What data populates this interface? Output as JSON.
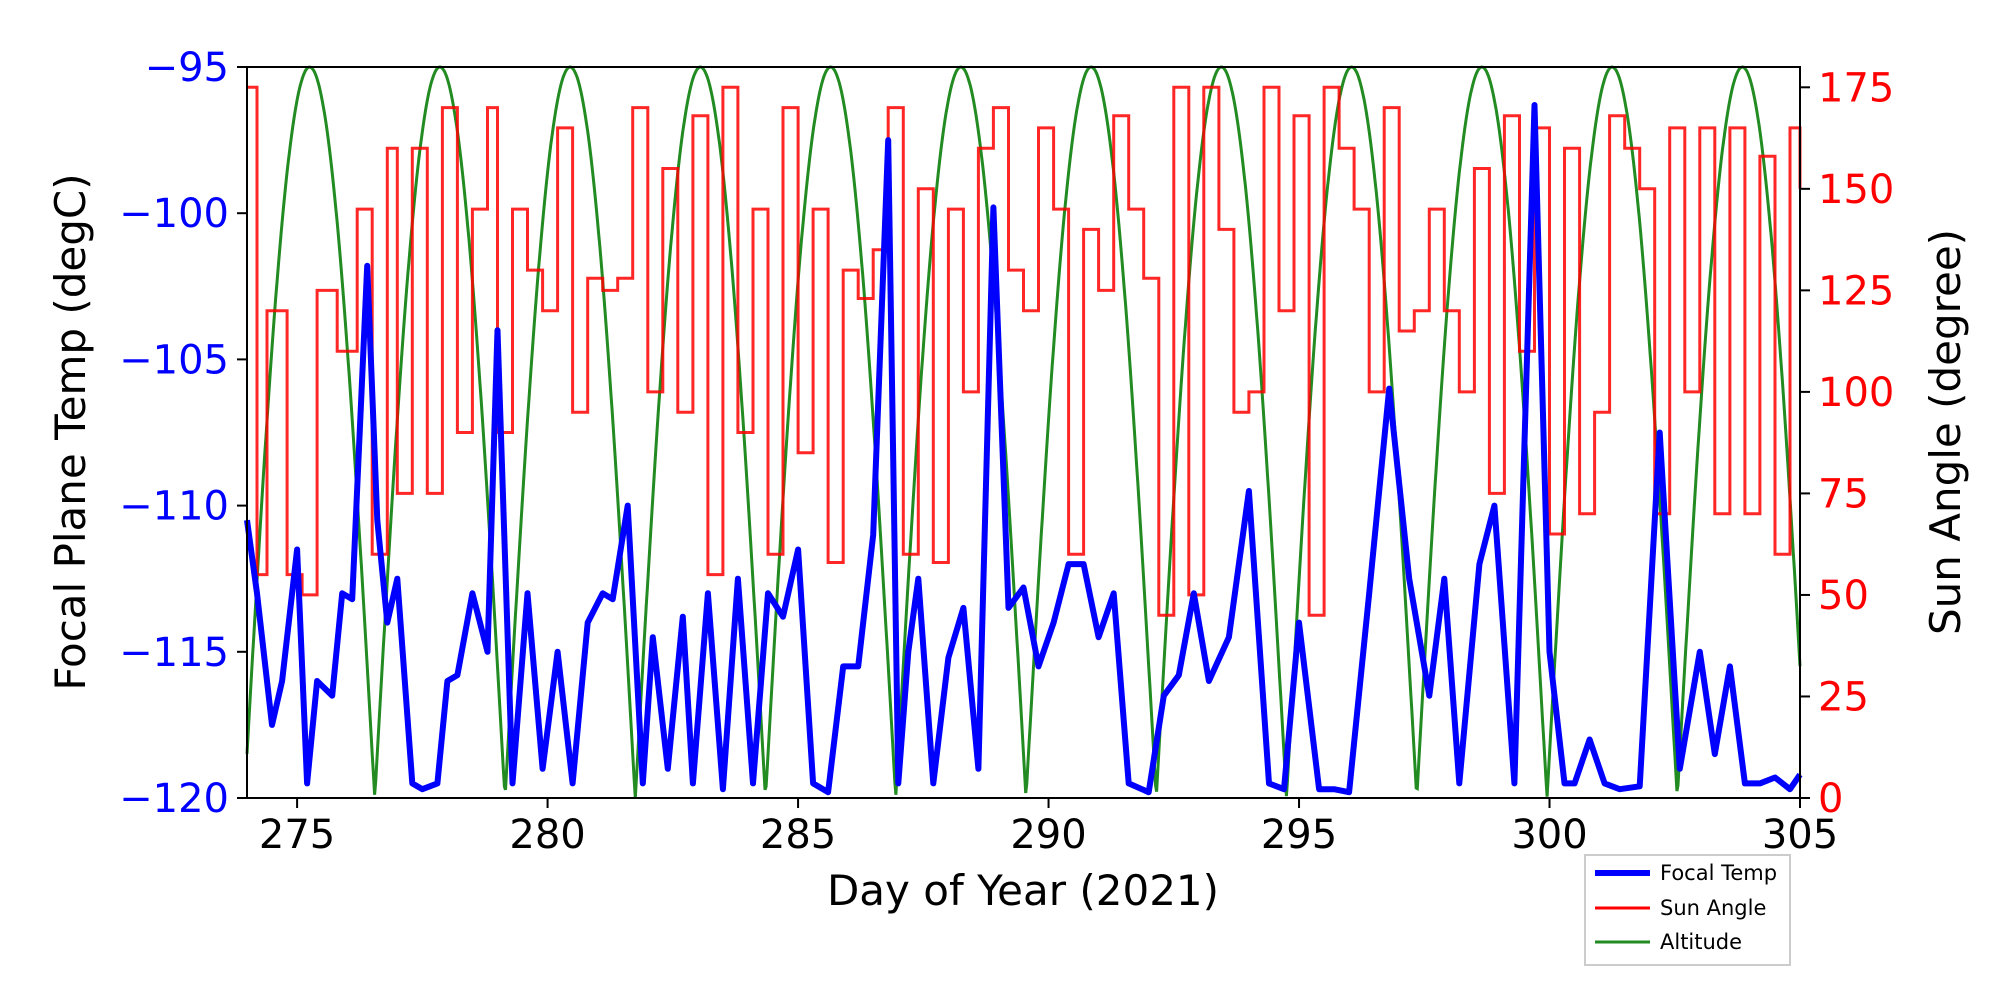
{
  "chart_data": {
    "type": "line",
    "title": "",
    "xlabel": "Day of Year (2021)",
    "ylabel_left": "Focal Plane Temp (degC)",
    "ylabel_right": "Sun Angle (degree)",
    "xlim": [
      274,
      305
    ],
    "ylim_left": [
      -120,
      -95
    ],
    "ylim_right": [
      0,
      180
    ],
    "x_ticks": [
      275,
      280,
      285,
      290,
      295,
      300,
      305
    ],
    "y_left_ticks": [
      -95,
      -100,
      -105,
      -110,
      -115,
      -120
    ],
    "y_left_tick_labels": [
      "−95",
      "−100",
      "−105",
      "−110",
      "−115",
      "−120"
    ],
    "y_right_ticks": [
      0,
      25,
      50,
      75,
      100,
      125,
      150,
      175
    ],
    "grid": false,
    "legend_position": "lower-right",
    "colors": {
      "focal": "#0000ff",
      "sun": "#ff0000",
      "altitude": "#228b22",
      "left_axis": "#0000ff",
      "right_axis": "#ff0000"
    },
    "series": [
      {
        "name": "Focal Temp",
        "axis": "left",
        "x": [
          274.0,
          274.2,
          274.5,
          274.7,
          275.0,
          275.2,
          275.4,
          275.7,
          275.9,
          276.1,
          276.4,
          276.6,
          276.8,
          277.0,
          277.3,
          277.5,
          277.8,
          278.0,
          278.2,
          278.5,
          278.8,
          279.0,
          279.3,
          279.6,
          279.9,
          280.2,
          280.5,
          280.8,
          281.1,
          281.3,
          281.6,
          281.9,
          282.1,
          282.4,
          282.7,
          282.9,
          283.2,
          283.5,
          283.8,
          284.1,
          284.4,
          284.7,
          285.0,
          285.3,
          285.6,
          285.9,
          286.2,
          286.5,
          286.8,
          287.0,
          287.2,
          287.4,
          287.7,
          288.0,
          288.3,
          288.6,
          288.9,
          289.2,
          289.5,
          289.8,
          290.1,
          290.4,
          290.7,
          291.0,
          291.3,
          291.6,
          292.0,
          292.3,
          292.6,
          292.9,
          293.2,
          293.6,
          294.0,
          294.4,
          294.7,
          295.0,
          295.4,
          295.7,
          296.0,
          296.4,
          296.8,
          297.2,
          297.6,
          297.9,
          298.2,
          298.6,
          298.9,
          299.3,
          299.7,
          300.0,
          300.3,
          300.5,
          300.8,
          301.1,
          301.4,
          301.8,
          302.2,
          302.6,
          303.0,
          303.3,
          303.6,
          303.9,
          304.2,
          304.5,
          304.8,
          305.0
        ],
        "y": [
          -110.5,
          -113.0,
          -117.5,
          -116.0,
          -111.5,
          -119.5,
          -116.0,
          -116.5,
          -113.0,
          -113.2,
          -101.8,
          -110.5,
          -114.0,
          -112.5,
          -119.5,
          -119.7,
          -119.5,
          -116.0,
          -115.8,
          -113.0,
          -115.0,
          -104.0,
          -119.5,
          -113.0,
          -119.0,
          -115.0,
          -119.5,
          -114.0,
          -113.0,
          -113.2,
          -110.0,
          -119.5,
          -114.5,
          -119.0,
          -113.8,
          -119.5,
          -113.0,
          -119.7,
          -112.5,
          -119.5,
          -113.0,
          -113.8,
          -111.5,
          -119.5,
          -119.8,
          -115.5,
          -115.5,
          -111.0,
          -97.5,
          -119.5,
          -115.0,
          -112.5,
          -119.5,
          -115.2,
          -113.5,
          -119.0,
          -99.8,
          -113.5,
          -112.8,
          -115.5,
          -114.0,
          -112.0,
          -112.0,
          -114.5,
          -113.0,
          -119.5,
          -119.8,
          -116.5,
          -115.8,
          -113.0,
          -116.0,
          -114.5,
          -109.5,
          -119.5,
          -119.7,
          -114.0,
          -119.7,
          -119.7,
          -119.8,
          -113.0,
          -106.0,
          -112.5,
          -116.5,
          -112.5,
          -119.5,
          -112.0,
          -110.0,
          -119.5,
          -96.3,
          -115.0,
          -119.5,
          -119.5,
          -118.0,
          -119.5,
          -119.7,
          -119.6,
          -107.5,
          -119.0,
          -115.0,
          -118.5,
          -115.5,
          -119.5,
          -119.5,
          -119.3,
          -119.7,
          -119.2
        ]
      },
      {
        "name": "Sun Angle",
        "axis": "right",
        "x": [
          274.0,
          274.2,
          274.4,
          274.8,
          275.1,
          275.4,
          275.8,
          276.2,
          276.5,
          276.8,
          277.0,
          277.3,
          277.6,
          277.9,
          278.2,
          278.5,
          278.8,
          279.0,
          279.3,
          279.6,
          279.9,
          280.2,
          280.5,
          280.8,
          281.1,
          281.4,
          281.7,
          282.0,
          282.3,
          282.6,
          282.9,
          283.2,
          283.5,
          283.8,
          284.1,
          284.4,
          284.7,
          285.0,
          285.3,
          285.6,
          285.9,
          286.2,
          286.5,
          286.8,
          287.1,
          287.4,
          287.7,
          288.0,
          288.3,
          288.6,
          288.9,
          289.2,
          289.5,
          289.8,
          290.1,
          290.4,
          290.7,
          291.0,
          291.3,
          291.6,
          291.9,
          292.2,
          292.5,
          292.8,
          293.1,
          293.4,
          293.7,
          294.0,
          294.3,
          294.6,
          294.9,
          295.2,
          295.5,
          295.8,
          296.1,
          296.4,
          296.7,
          297.0,
          297.3,
          297.6,
          297.9,
          298.2,
          298.5,
          298.8,
          299.1,
          299.4,
          299.7,
          300.0,
          300.3,
          300.6,
          300.9,
          301.2,
          301.5,
          301.8,
          302.1,
          302.4,
          302.7,
          303.0,
          303.3,
          303.6,
          303.9,
          304.2,
          304.5,
          304.8,
          305.0
        ],
        "y": [
          175,
          55,
          120,
          55,
          50,
          125,
          110,
          145,
          60,
          160,
          75,
          160,
          75,
          170,
          90,
          145,
          170,
          90,
          145,
          130,
          120,
          165,
          95,
          128,
          125,
          128,
          170,
          100,
          155,
          95,
          168,
          55,
          175,
          90,
          145,
          60,
          170,
          85,
          145,
          58,
          130,
          123,
          135,
          170,
          60,
          150,
          58,
          145,
          100,
          160,
          170,
          130,
          120,
          165,
          145,
          60,
          140,
          125,
          168,
          145,
          128,
          45,
          175,
          50,
          175,
          140,
          95,
          100,
          175,
          120,
          168,
          45,
          175,
          160,
          145,
          100,
          170,
          115,
          120,
          145,
          120,
          100,
          155,
          75,
          168,
          110,
          165,
          65,
          160,
          70,
          95,
          168,
          160,
          150,
          70,
          165,
          100,
          165,
          70,
          165,
          70,
          158,
          60,
          165,
          150
        ]
      },
      {
        "name": "Altitude",
        "axis": "right",
        "x_axis_scaled": true,
        "period_days": 2.6,
        "first_min_day": 276.55,
        "minimum": 0,
        "maximum": 180,
        "sample_minima_days": [
          276.55,
          279.15,
          281.75,
          284.35,
          286.95,
          289.55,
          292.15,
          294.75,
          297.35,
          299.95,
          302.55
        ]
      }
    ],
    "legend": [
      "Focal Temp",
      "Sun Angle",
      "Altitude"
    ]
  }
}
